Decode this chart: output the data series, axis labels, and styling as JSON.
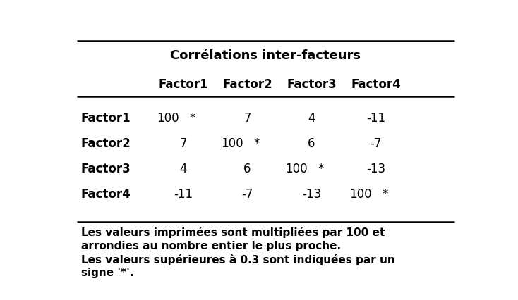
{
  "title": "Corrélations inter-facteurs",
  "col_headers": [
    "Factor1",
    "Factor2",
    "Factor3",
    "Factor4"
  ],
  "row_headers": [
    "Factor1",
    "Factor2",
    "Factor3",
    "Factor4"
  ],
  "cell_values": [
    [
      "100",
      "*",
      "7",
      "",
      "4",
      "",
      "-11",
      ""
    ],
    [
      "7",
      "",
      "100",
      "*",
      "6",
      "",
      "-7",
      ""
    ],
    [
      "4",
      "",
      "6",
      "",
      "100",
      "*",
      "-13",
      ""
    ],
    [
      "-11",
      "",
      "-7",
      "",
      "-13",
      "",
      "100",
      "*"
    ]
  ],
  "footnote_lines": [
    "Les valeurs imprimées sont multipliées par 100 et",
    "arrondies au nombre entier le plus proche.",
    "Les valeurs supérieures à 0.3 sont indiquées par un",
    "signe '*'."
  ],
  "bg_color": "#ffffff",
  "text_color": "#000000",
  "title_fontsize": 13,
  "header_fontsize": 12,
  "cell_fontsize": 12,
  "row_label_fontsize": 12,
  "footnote_fontsize": 11
}
